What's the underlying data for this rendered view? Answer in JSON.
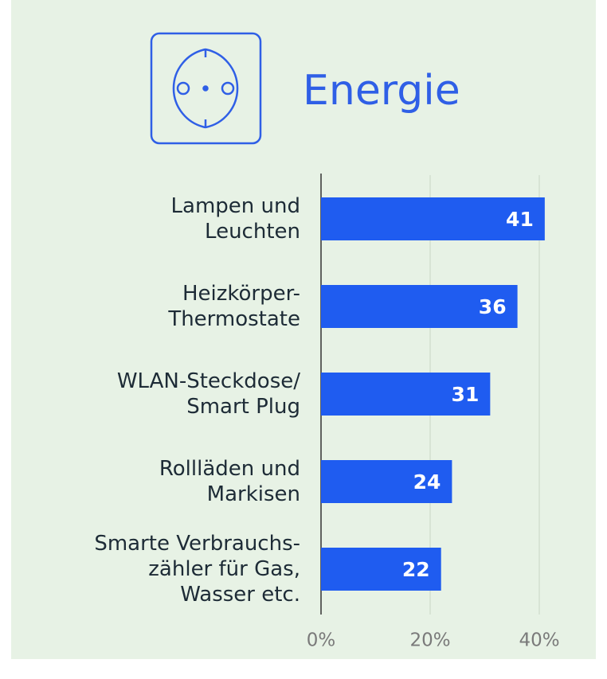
{
  "chart_data": {
    "type": "bar",
    "orientation": "horizontal",
    "title": "Energie",
    "categories": [
      [
        "Lampen und",
        "Leuchten"
      ],
      [
        "Heizkörper-",
        "Thermostate"
      ],
      [
        "WLAN-Steckdose/",
        "Smart Plug"
      ],
      [
        "Rollläden und",
        "Markisen"
      ],
      [
        "Smarte Verbrauchs-",
        "zähler für Gas,",
        "Wasser etc."
      ]
    ],
    "values": [
      41,
      36,
      31,
      24,
      22
    ],
    "color": "#1f5cf0",
    "xlim": [
      0,
      50
    ],
    "xticks": [
      {
        "value": 0,
        "label": "0%"
      },
      {
        "value": 20,
        "label": "20%"
      },
      {
        "value": 40,
        "label": "40%"
      }
    ],
    "grid": true
  }
}
